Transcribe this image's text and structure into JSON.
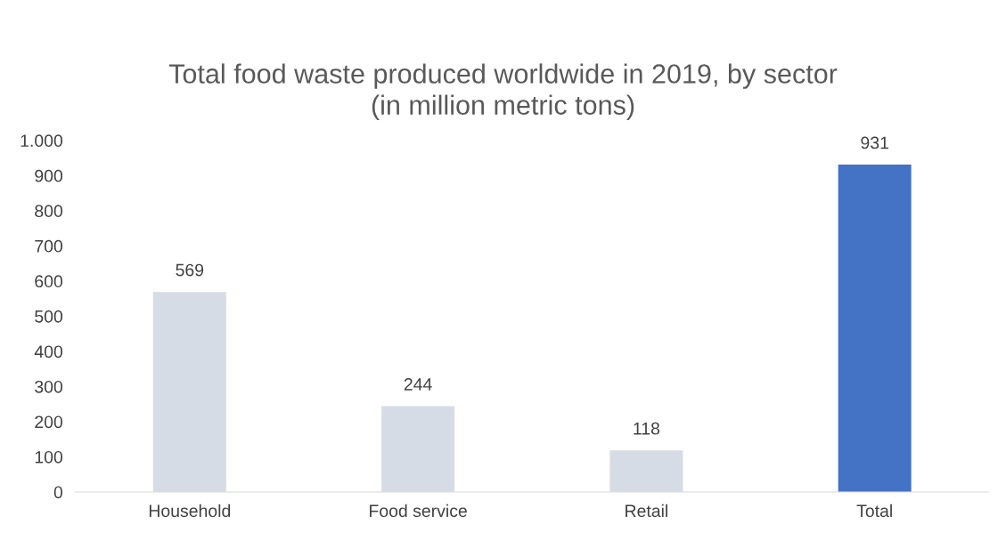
{
  "chart_data": {
    "type": "bar",
    "title": "Total food waste produced worldwide in 2019, by sector\n(in million metric tons)",
    "categories": [
      "Household",
      "Food service",
      "Retail",
      "Total"
    ],
    "values": [
      569,
      244,
      118,
      931
    ],
    "colors": [
      "#d6dce5",
      "#d6dce5",
      "#d6dce5",
      "#4472c4"
    ],
    "ylim": [
      0,
      1000
    ],
    "yticks": [
      0,
      100,
      200,
      300,
      400,
      500,
      600,
      700,
      800,
      900,
      {
        "value": 1000,
        "label": "1.000"
      }
    ],
    "data_labels": true,
    "grid": false,
    "legend": false
  }
}
